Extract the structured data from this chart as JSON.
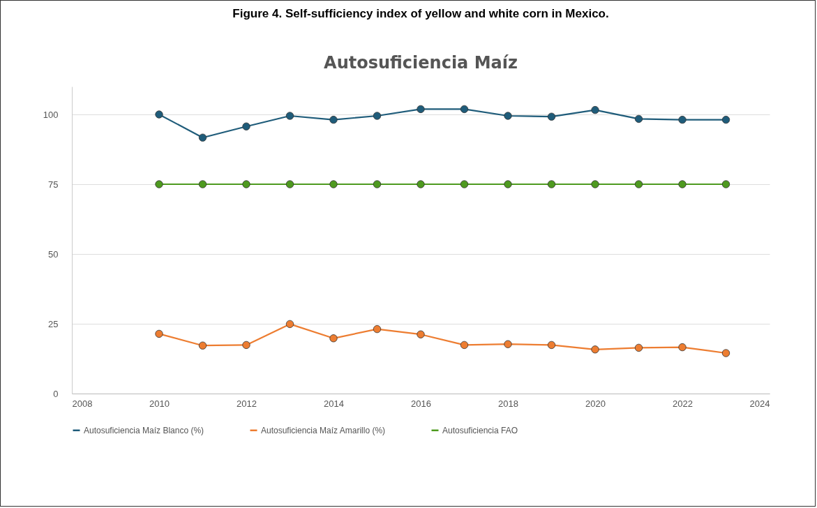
{
  "chart_data": {
    "type": "line",
    "title": "Figure 4. Self-sufficiency index of yellow and white corn in Mexico.",
    "subtitle": "Autosuficiencia Maíz",
    "x": [
      2010,
      2011,
      2012,
      2013,
      2014,
      2015,
      2016,
      2017,
      2018,
      2019,
      2020,
      2021,
      2022,
      2023
    ],
    "series": [
      {
        "name": "Autosuficiencia Maíz Blanco (%)",
        "color": "#1f5c7a",
        "values": [
          100,
          91.7,
          95.7,
          99.5,
          98.1,
          99.5,
          101.9,
          101.9,
          99.5,
          99.2,
          101.6,
          98.4,
          98.1,
          98.1
        ]
      },
      {
        "name": "Autosuficiencia Maíz Amarillo (%)",
        "color": "#ed7d31",
        "values": [
          21.4,
          17.2,
          17.4,
          24.9,
          19.8,
          23.1,
          21.2,
          17.4,
          17.7,
          17.4,
          15.8,
          16.4,
          16.6,
          14.5
        ]
      },
      {
        "name": "Autosuficiencia FAO",
        "color": "#4e9a1f",
        "values": [
          75,
          75,
          75,
          75,
          75,
          75,
          75,
          75,
          75,
          75,
          75,
          75,
          75,
          75
        ]
      }
    ],
    "xlim": [
      2008,
      2024
    ],
    "xticks": [
      2008,
      2010,
      2012,
      2014,
      2016,
      2018,
      2020,
      2022,
      2024
    ],
    "ylim": [
      0,
      110
    ],
    "yticks": [
      0,
      25,
      50,
      75,
      100
    ],
    "grid": "y",
    "legend": "bottom",
    "marker": "circle",
    "line_style": "solid"
  }
}
